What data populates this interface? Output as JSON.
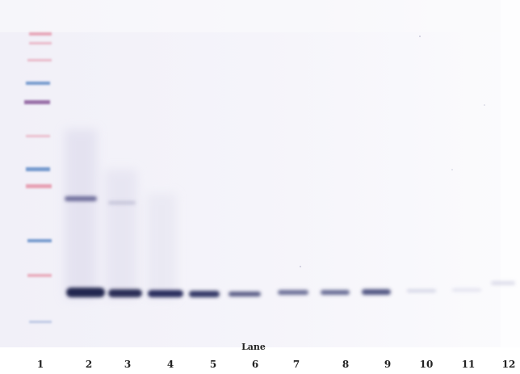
{
  "caption": {
    "title": "Lane",
    "lanes": [
      "1",
      "2",
      "3",
      "4",
      "5",
      "6",
      "7",
      "8",
      "9",
      "10",
      "11",
      "12"
    ]
  },
  "colors": {
    "membrane": "#f4f3f9",
    "band": "#2c2f5e",
    "ladder_blue": "#5f89c7",
    "ladder_pink": "#e593a7",
    "ladder_purple": "#8f5f9f"
  },
  "image": {
    "description": "western blot membrane with molecular weight ladder in lane 1 and a strong band near the bottom in lanes 2-9, fading to faint in lanes 10-12"
  }
}
